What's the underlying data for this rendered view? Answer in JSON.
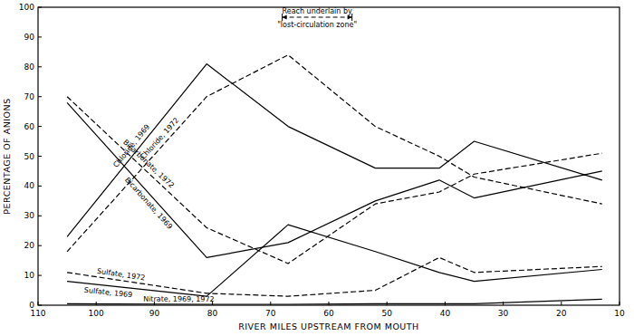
{
  "chart_data": {
    "type": "line",
    "x_label": "RIVER MILES UPSTREAM FROM MOUTH",
    "y_label": "PERCENTAGE OF ANIONS",
    "x": [
      105,
      81,
      67,
      52,
      41,
      35,
      13
    ],
    "xlim": [
      110,
      10
    ],
    "xticks": [
      110,
      100,
      90,
      80,
      70,
      60,
      50,
      40,
      30,
      20,
      10
    ],
    "ylim": [
      0,
      100
    ],
    "yticks": [
      0,
      10,
      20,
      30,
      40,
      50,
      60,
      70,
      80,
      90,
      100
    ],
    "grid": false,
    "series": [
      {
        "name": "Chloride, 1969",
        "color": "#000000",
        "line_style": "solid",
        "values": [
          23,
          81,
          60,
          46,
          46,
          55,
          42
        ]
      },
      {
        "name": "Chloride, 1972",
        "color": "#000000",
        "line_style": "dashed",
        "values": [
          18,
          70,
          84,
          60,
          50,
          43,
          34
        ]
      },
      {
        "name": "Bicarbonate, 1972",
        "color": "#000000",
        "line_style": "dashed",
        "values": [
          70,
          26,
          14,
          34,
          38,
          44,
          51
        ]
      },
      {
        "name": "Bicarbonate, 1969",
        "color": "#000000",
        "line_style": "solid",
        "values": [
          68,
          16,
          21,
          35,
          42,
          36,
          45
        ]
      },
      {
        "name": "Sulfate, 1972",
        "color": "#000000",
        "line_style": "dashed",
        "values": [
          11,
          4,
          3,
          5,
          16,
          11,
          13
        ]
      },
      {
        "name": "Sulfate, 1969",
        "color": "#000000",
        "line_style": "solid",
        "values": [
          8,
          3,
          27,
          18,
          11,
          8,
          12
        ]
      },
      {
        "name": "Nitrate, 1969, 1972",
        "color": "#000000",
        "line_style": "solid",
        "values": [
          0.5,
          0.3,
          0.3,
          0.5,
          0.5,
          0.5,
          2
        ]
      }
    ],
    "annotation": {
      "lines": [
        "Reach underlain by",
        "\"lost-circulation zone\""
      ],
      "x_from": 68,
      "x_to": 56
    }
  }
}
